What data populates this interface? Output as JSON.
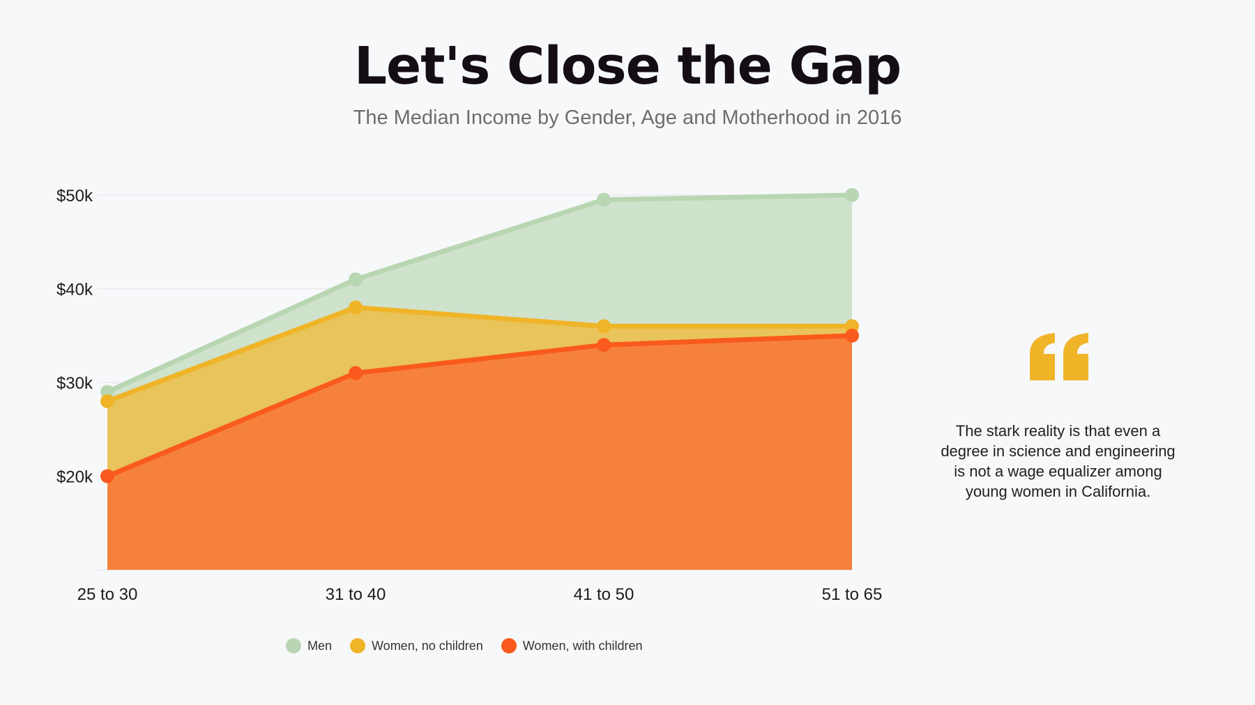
{
  "title": "Let's Close the Gap",
  "subtitle": "The Median Income by Gender, Age and Motherhood in 2016",
  "quote": {
    "icon": "quote-mark-icon",
    "text": "The stark reality is that even a degree in science and engineering is not a wage equalizer among young women in California."
  },
  "colors": {
    "men": "#b9d6b3",
    "women_no_children": "#f0b429",
    "women_with_children": "#fa5a1e"
  },
  "chart_data": {
    "type": "area",
    "title": "Let's Close the Gap",
    "subtitle": "The Median Income by Gender, Age and Motherhood in 2016",
    "categories": [
      "25 to 30",
      "31 to 40",
      "41 to 50",
      "51 to 65"
    ],
    "ylim": [
      10000,
      50000
    ],
    "yticks": [
      20000,
      30000,
      40000,
      50000
    ],
    "ytick_labels": [
      "$20k",
      "$30k",
      "$40k",
      "$50k"
    ],
    "grid": true,
    "legend_position": "bottom",
    "series": [
      {
        "name": "Men",
        "values": [
          29000,
          41000,
          49500,
          50000
        ]
      },
      {
        "name": "Women, no children",
        "values": [
          28000,
          38000,
          36000,
          36000
        ]
      },
      {
        "name": "Women, with children",
        "values": [
          20000,
          31000,
          34000,
          35000
        ]
      }
    ]
  }
}
